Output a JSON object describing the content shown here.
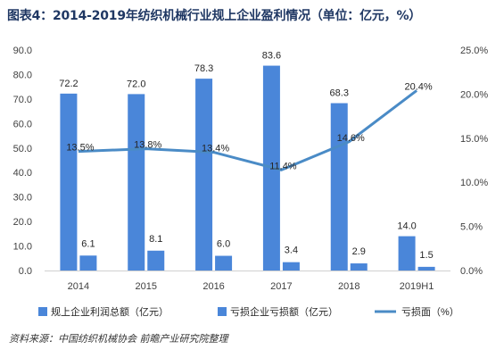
{
  "header": {
    "title": "图表4：2014-2019年纺织机械行业规上企业盈利情况（单位：亿元，%）"
  },
  "footer": {
    "source": "资料来源：中国纺织机械协会 前瞻产业研究院整理"
  },
  "colors": {
    "bar1": "#4a86d9",
    "bar2": "#4a86d9",
    "line": "#4a8bc6",
    "axis_text": "#404040",
    "title": "#1f3763"
  },
  "chart_data": {
    "type": "bar",
    "categories": [
      "2014",
      "2015",
      "2016",
      "2017",
      "2018",
      "2019H1"
    ],
    "series": [
      {
        "name": "规上企业利润总额（亿元）",
        "type": "bar",
        "axis": "left",
        "values": [
          72.2,
          72.0,
          78.3,
          83.6,
          68.3,
          14.0
        ]
      },
      {
        "name": "亏损企业亏损额（亿元）",
        "type": "bar",
        "axis": "left",
        "values": [
          6.1,
          8.1,
          6.0,
          3.4,
          2.9,
          1.5
        ]
      },
      {
        "name": "亏损面（%）",
        "type": "line",
        "axis": "right",
        "values": [
          13.5,
          13.8,
          13.4,
          11.4,
          14.6,
          20.4
        ]
      }
    ],
    "y_left": {
      "range": [
        0,
        90
      ],
      "ticks": [
        "0.0",
        "10.0",
        "20.0",
        "30.0",
        "40.0",
        "50.0",
        "60.0",
        "70.0",
        "80.0",
        "90.0"
      ]
    },
    "y_right": {
      "range": [
        0,
        25
      ],
      "ticks": [
        "0.0%",
        "5.0%",
        "10.0%",
        "15.0%",
        "20.0%",
        "25.0%"
      ]
    },
    "bar_labels": [
      [
        "72.2",
        "72.0",
        "78.3",
        "83.6",
        "68.3",
        "14.0"
      ],
      [
        "6.1",
        "8.1",
        "6.0",
        "3.4",
        "2.9",
        "1.5"
      ]
    ],
    "line_labels": [
      "13.5%",
      "13.8%",
      "13.4%",
      "11.4%",
      "14.6%",
      "20.4%"
    ],
    "grid": false,
    "legend_position": "bottom"
  }
}
